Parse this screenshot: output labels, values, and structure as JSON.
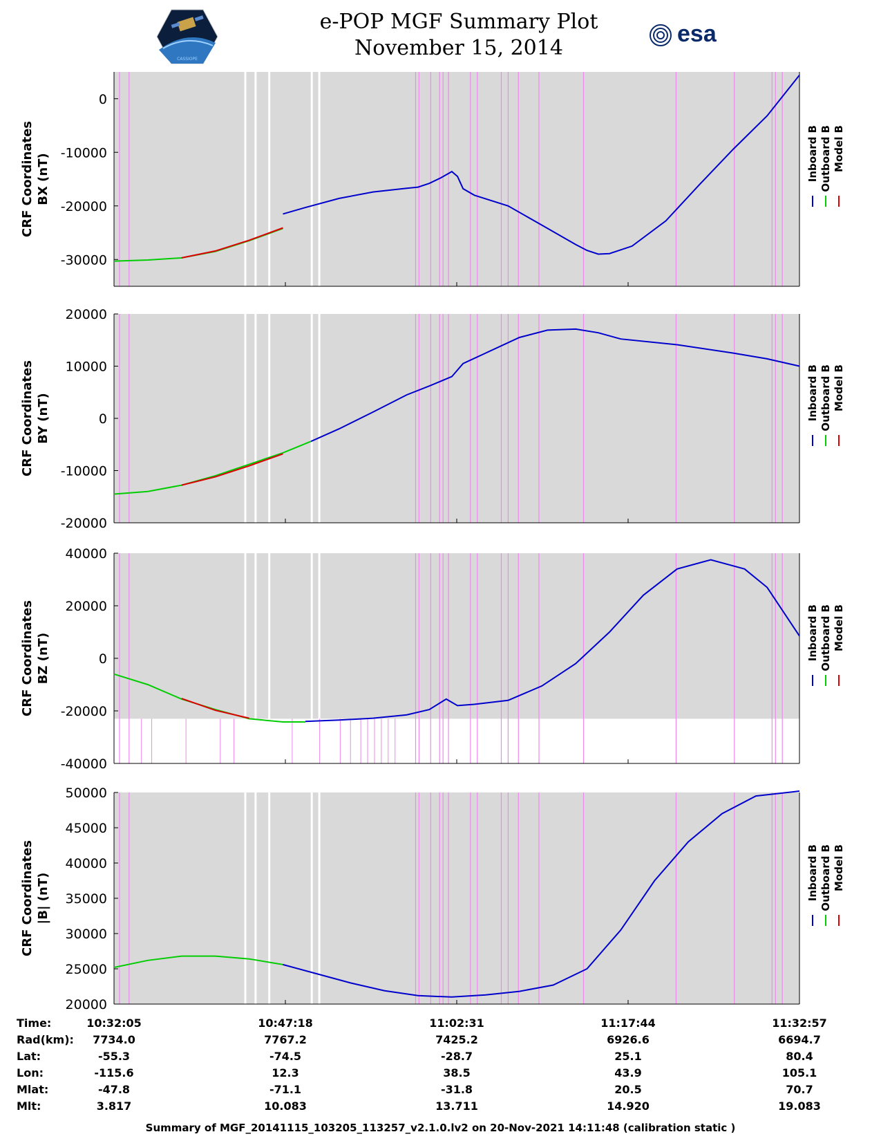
{
  "header": {
    "title": "e-POP MGF Summary Plot",
    "date": "November 15, 2014",
    "logo_left": "CASSIOPE",
    "logo_right": "esa"
  },
  "legend": [
    "Inboard B",
    "Outboard B",
    "Model B"
  ],
  "colors": {
    "inboard": "#0000cc",
    "outboard": "#00cc00",
    "model": "#dd0000",
    "bg": "#d9d9d9",
    "marker": "#ee88ee"
  },
  "time_axis": {
    "ticks": [
      "10:32:05",
      "10:47:18",
      "11:02:31",
      "11:17:44",
      "11:32:57"
    ],
    "range_min": [
      0,
      60.87
    ]
  },
  "info_table": {
    "rows": [
      {
        "label": "Time:",
        "values": [
          "10:32:05",
          "10:47:18",
          "11:02:31",
          "11:17:44",
          "11:32:57"
        ]
      },
      {
        "label": "Rad(km):",
        "values": [
          "7734.0",
          "7767.2",
          "7425.2",
          "6926.6",
          "6694.7"
        ]
      },
      {
        "label": "Lat:",
        "values": [
          "-55.3",
          "-74.5",
          "-28.7",
          "25.1",
          "80.4"
        ]
      },
      {
        "label": "Lon:",
        "values": [
          "-115.6",
          "12.3",
          "38.5",
          "43.9",
          "105.1"
        ]
      },
      {
        "label": "Mlat:",
        "values": [
          "-47.8",
          "-71.1",
          "-31.8",
          "20.5",
          "70.7"
        ]
      },
      {
        "label": "Mlt:",
        "values": [
          "3.817",
          "10.083",
          "13.711",
          "14.920",
          "19.083"
        ]
      }
    ]
  },
  "footer": "Summary of MGF_20141115_103205_113257_v2.1.0.lv2 on 20-Nov-2021 14:11:48 (calibration static )",
  "chart_data": [
    {
      "type": "line",
      "ylabel_line1": "CRF Coordinates",
      "ylabel_line2": "BX (nT)",
      "ylim": [
        -35000,
        5000
      ],
      "yticks": [
        0,
        -10000,
        -20000,
        -30000
      ],
      "ytick_labels": [
        "0",
        "-10000",
        "-20000",
        "-30000"
      ],
      "series": [
        {
          "name": "Outboard B",
          "x": [
            0,
            3,
            6,
            9,
            12,
            15
          ],
          "values": [
            -30300,
            -30100,
            -29700,
            -28500,
            -26500,
            -24200
          ]
        },
        {
          "name": "Model B",
          "x": [
            6,
            9,
            12,
            15
          ],
          "values": [
            -29700,
            -28400,
            -26400,
            -24100
          ]
        },
        {
          "name": "Inboard B",
          "x": [
            15,
            17,
            20,
            23,
            26,
            27,
            28,
            29,
            30,
            30.5,
            31,
            32,
            35,
            38,
            41,
            42,
            43,
            44,
            46,
            49,
            52,
            55,
            58,
            60.87
          ],
          "values": [
            -21500,
            -20300,
            -18600,
            -17400,
            -16700,
            -16500,
            -15800,
            -14800,
            -13600,
            -14500,
            -16800,
            -18000,
            -20000,
            -23600,
            -27200,
            -28300,
            -29000,
            -28900,
            -27500,
            -22800,
            -16000,
            -9400,
            -3200,
            4400
          ]
        }
      ],
      "title": ""
    },
    {
      "type": "line",
      "ylabel_line1": "CRF Coordinates",
      "ylabel_line2": "BY (nT)",
      "ylim": [
        -20000,
        20000
      ],
      "yticks": [
        20000,
        10000,
        0,
        -10000,
        -20000
      ],
      "ytick_labels": [
        "20000",
        "10000",
        "0",
        "-10000",
        "-20000"
      ],
      "series": [
        {
          "name": "Outboard B",
          "x": [
            0,
            3,
            6,
            9,
            12,
            15,
            17.5
          ],
          "values": [
            -14500,
            -14000,
            -12800,
            -11000,
            -8800,
            -6600,
            -4400
          ]
        },
        {
          "name": "Model B",
          "x": [
            6,
            9,
            12,
            15
          ],
          "values": [
            -12800,
            -11200,
            -9100,
            -6800
          ]
        },
        {
          "name": "Inboard B",
          "x": [
            17.5,
            20,
            23,
            26,
            28,
            30,
            31,
            33,
            36,
            38.5,
            41,
            43,
            45,
            50,
            55,
            58,
            60.87
          ],
          "values": [
            -4400,
            -2000,
            1200,
            4500,
            6200,
            8000,
            10500,
            12500,
            15500,
            16900,
            17100,
            16400,
            15200,
            14100,
            12500,
            11400,
            10000
          ]
        }
      ],
      "title": ""
    },
    {
      "type": "line",
      "ylabel_line1": "CRF Coordinates",
      "ylabel_line2": "BZ (nT)",
      "ylim": [
        -40000,
        40000
      ],
      "yticks": [
        40000,
        20000,
        0,
        -20000,
        -40000
      ],
      "ytick_labels": [
        "40000",
        "20000",
        "0",
        "-20000",
        "-40000"
      ],
      "series": [
        {
          "name": "Outboard B",
          "x": [
            0,
            3,
            6,
            9,
            12,
            15,
            17
          ],
          "values": [
            -6000,
            -10000,
            -15500,
            -19500,
            -23000,
            -24200,
            -24200
          ]
        },
        {
          "name": "Model B",
          "x": [
            6,
            9,
            12
          ],
          "values": [
            -15300,
            -19800,
            -22800
          ]
        },
        {
          "name": "Inboard B",
          "x": [
            17,
            20,
            23,
            26,
            28,
            29.5,
            30.5,
            32,
            35,
            38,
            41,
            44,
            47,
            50,
            53,
            56,
            58,
            60.87
          ],
          "values": [
            -24000,
            -23500,
            -22800,
            -21500,
            -19500,
            -15500,
            -18000,
            -17500,
            -16000,
            -10500,
            -2000,
            10000,
            24000,
            34000,
            37500,
            34000,
            27000,
            8500
          ]
        }
      ],
      "title": ""
    },
    {
      "type": "line",
      "ylabel_line1": "CRF Coordinates",
      "ylabel_line2": "|B| (nT)",
      "ylim": [
        20000,
        50000
      ],
      "yticks": [
        50000,
        45000,
        40000,
        35000,
        30000,
        25000,
        20000
      ],
      "ytick_labels": [
        "50000",
        "45000",
        "40000",
        "35000",
        "30000",
        "25000",
        "20000"
      ],
      "series": [
        {
          "name": "Outboard B",
          "x": [
            0,
            3,
            6,
            9,
            12,
            15
          ],
          "values": [
            25200,
            26200,
            26800,
            26800,
            26400,
            25600
          ]
        },
        {
          "name": "Inboard B",
          "x": [
            15,
            18,
            21,
            24,
            27,
            30,
            33,
            36,
            39,
            42,
            45,
            48,
            51,
            54,
            57,
            60.87
          ],
          "values": [
            25600,
            24300,
            23000,
            21900,
            21200,
            21000,
            21300,
            21800,
            22700,
            25000,
            30500,
            37500,
            43000,
            47000,
            49500,
            50200
          ]
        }
      ],
      "title": ""
    }
  ]
}
